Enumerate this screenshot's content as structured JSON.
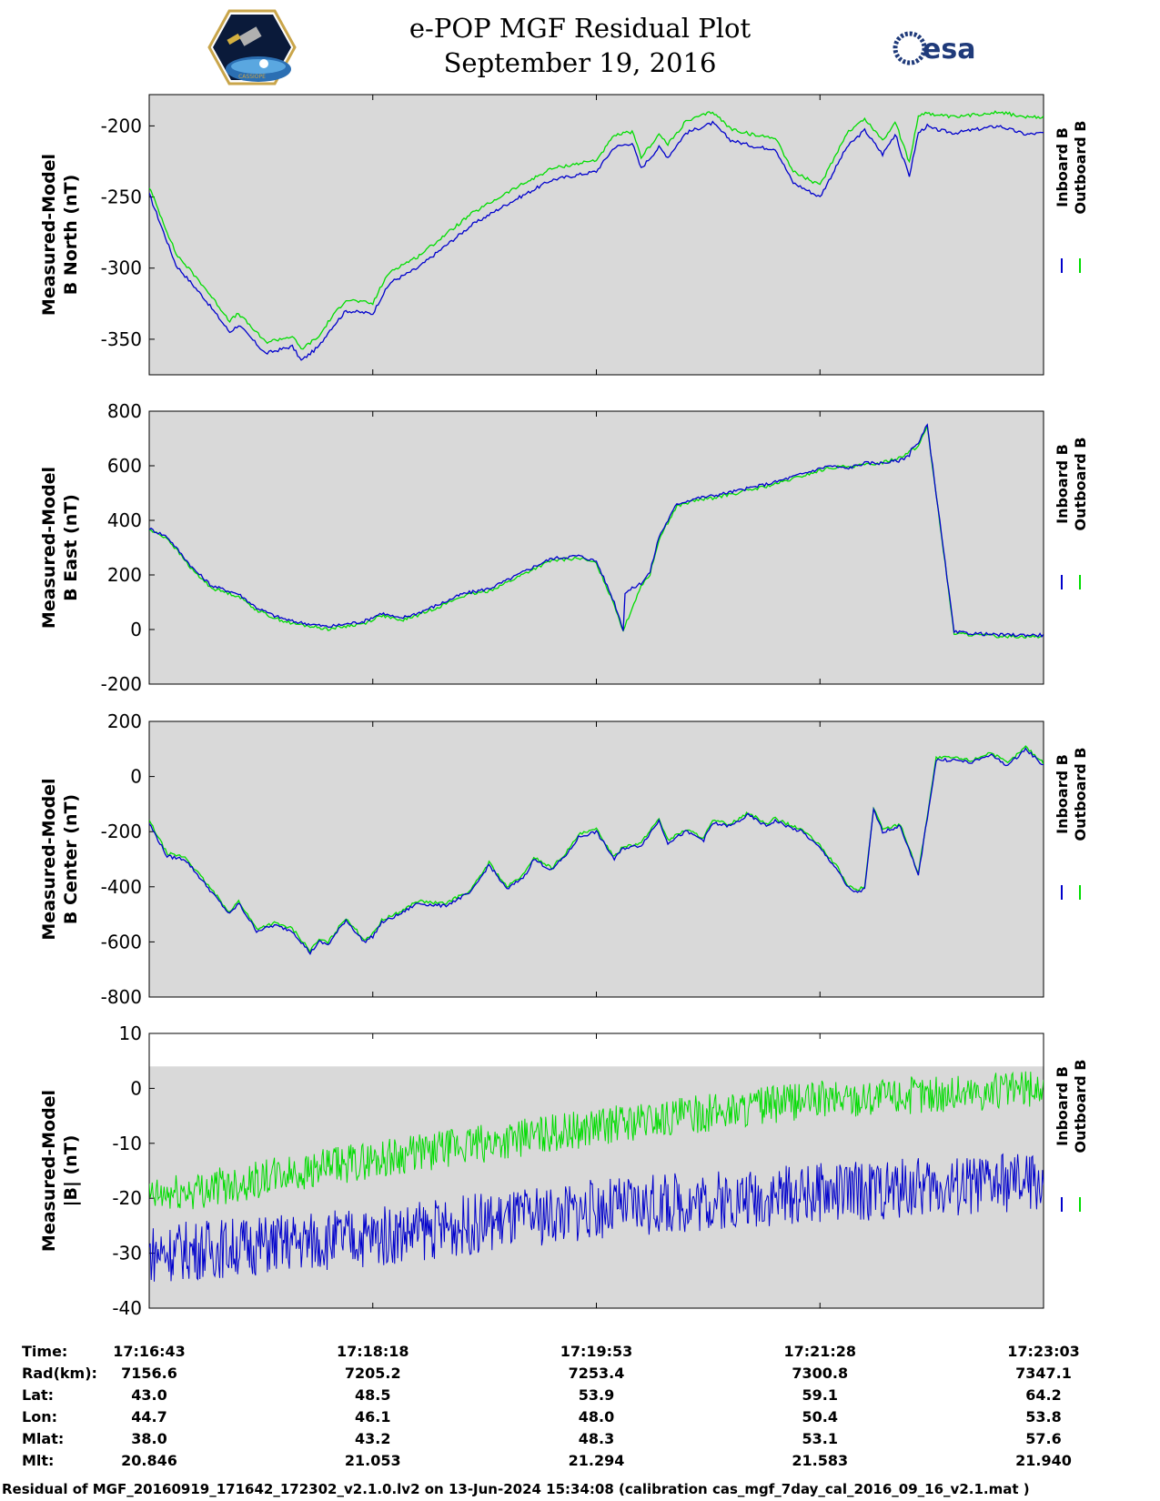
{
  "header": {
    "title_line1": "e-POP MGF Residual Plot",
    "title_line2": "September 19, 2016",
    "left_logo_text": "CASSIOPE",
    "right_logo_text": "esa"
  },
  "colors": {
    "inboard": "#0000cc",
    "outboard": "#00dd00",
    "plot_bg": "#d9d9d9"
  },
  "legend": {
    "inboard": "Inboard B",
    "outboard": "Outboard B"
  },
  "chart_data": [
    {
      "type": "line",
      "ylabel_line1": "Measured-Model",
      "ylabel_line2": "B North (nT)",
      "ylim": [
        -375,
        -178
      ],
      "yticks": [
        -200,
        -250,
        -300,
        -350
      ],
      "grid": false,
      "series": [
        {
          "name": "Inboard B",
          "x": [
            0,
            0.03,
            0.06,
            0.09,
            0.1,
            0.13,
            0.16,
            0.17,
            0.19,
            0.2,
            0.22,
            0.25,
            0.26,
            0.27,
            0.3,
            0.34,
            0.36,
            0.4,
            0.45,
            0.5,
            0.52,
            0.54,
            0.55,
            0.57,
            0.58,
            0.6,
            0.63,
            0.65,
            0.68,
            0.7,
            0.72,
            0.75,
            0.78,
            0.8,
            0.82,
            0.835,
            0.84,
            0.85,
            0.86,
            0.87,
            0.875,
            0.9,
            0.95,
            0.98,
            1.0
          ],
          "y": [
            -248,
            -298,
            -320,
            -345,
            -340,
            -360,
            -355,
            -365,
            -355,
            -345,
            -330,
            -332,
            -320,
            -310,
            -300,
            -280,
            -270,
            -255,
            -238,
            -232,
            -215,
            -212,
            -230,
            -215,
            -222,
            -205,
            -198,
            -210,
            -215,
            -216,
            -240,
            -250,
            -215,
            -203,
            -220,
            -205,
            -218,
            -235,
            -205,
            -200,
            -202,
            -205,
            -200,
            -206,
            -205
          ]
        },
        {
          "name": "Outboard B",
          "x": [
            0,
            0.03,
            0.06,
            0.09,
            0.1,
            0.13,
            0.16,
            0.17,
            0.19,
            0.2,
            0.22,
            0.25,
            0.26,
            0.27,
            0.3,
            0.34,
            0.36,
            0.4,
            0.45,
            0.5,
            0.52,
            0.54,
            0.55,
            0.57,
            0.58,
            0.6,
            0.63,
            0.65,
            0.68,
            0.7,
            0.72,
            0.75,
            0.78,
            0.8,
            0.82,
            0.835,
            0.84,
            0.85,
            0.86,
            0.87,
            0.875,
            0.9,
            0.95,
            0.98,
            1.0
          ],
          "y": [
            -243,
            -290,
            -312,
            -337,
            -332,
            -352,
            -348,
            -357,
            -348,
            -338,
            -322,
            -325,
            -312,
            -302,
            -292,
            -272,
            -262,
            -247,
            -230,
            -224,
            -207,
            -204,
            -222,
            -206,
            -213,
            -197,
            -190,
            -202,
            -207,
            -208,
            -232,
            -242,
            -205,
            -195,
            -210,
            -197,
            -208,
            -226,
            -193,
            -190,
            -192,
            -194,
            -190,
            -194,
            -194
          ]
        }
      ]
    },
    {
      "type": "line",
      "ylabel_line1": "Measured-Model",
      "ylabel_line2": "B East (nT)",
      "ylim": [
        -200,
        800
      ],
      "yticks": [
        800,
        600,
        400,
        200,
        0,
        -200
      ],
      "grid": false,
      "series": [
        {
          "name": "Inboard B",
          "x": [
            0,
            0.02,
            0.05,
            0.07,
            0.1,
            0.12,
            0.14,
            0.16,
            0.2,
            0.24,
            0.26,
            0.28,
            0.3,
            0.33,
            0.35,
            0.38,
            0.4,
            0.43,
            0.45,
            0.48,
            0.5,
            0.52,
            0.53,
            0.5,
            0.51,
            0.525,
            0.54,
            0.55,
            0.56,
            0.57,
            0.59,
            0.61,
            0.63,
            0.66,
            0.7,
            0.72,
            0.74,
            0.76,
            0.78,
            0.8,
            0.82,
            0.84,
            0.85,
            0.8,
            0.81,
            0.82,
            0.86,
            0.87,
            0.9,
            0.95,
            1.0
          ],
          "y": [
            370,
            340,
            220,
            160,
            130,
            80,
            50,
            30,
            10,
            30,
            60,
            40,
            60,
            100,
            130,
            150,
            180,
            230,
            260,
            270,
            250,
            100,
            0,
            270,
            270,
            120,
            150,
            170,
            210,
            340,
            460,
            480,
            490,
            510,
            540,
            560,
            580,
            600,
            590,
            610,
            610,
            620,
            640,
            560,
            590,
            600,
            680,
            750,
            -10,
            -20,
            -20
          ]
        },
        {
          "name": "Outboard B",
          "x": [
            0,
            0.02,
            0.05,
            0.07,
            0.1,
            0.12,
            0.14,
            0.16,
            0.2,
            0.24,
            0.26,
            0.28,
            0.3,
            0.33,
            0.35,
            0.38,
            0.4,
            0.43,
            0.45,
            0.48,
            0.5,
            0.52,
            0.53,
            0.55,
            0.56,
            0.57,
            0.59,
            0.61,
            0.63,
            0.66,
            0.7,
            0.72,
            0.74,
            0.76,
            0.8,
            0.82,
            0.84,
            0.86,
            0.87,
            0.9,
            0.95,
            1.0
          ],
          "y": [
            365,
            335,
            212,
            152,
            122,
            72,
            42,
            22,
            2,
            22,
            52,
            32,
            52,
            92,
            122,
            142,
            172,
            222,
            252,
            262,
            242,
            92,
            -5,
            162,
            202,
            332,
            452,
            472,
            482,
            502,
            532,
            552,
            572,
            592,
            602,
            612,
            632,
            672,
            745,
            -15,
            -25,
            -25
          ]
        }
      ]
    },
    {
      "type": "line",
      "ylabel_line1": "Measured-Model",
      "ylabel_line2": "B Center (nT)",
      "ylim": [
        -800,
        200
      ],
      "yticks": [
        200,
        0,
        -200,
        -400,
        -600,
        -800
      ],
      "grid": false,
      "series": [
        {
          "name": "Inboard B",
          "x": [
            0,
            0.02,
            0.04,
            0.06,
            0.09,
            0.1,
            0.12,
            0.14,
            0.16,
            0.18,
            0.19,
            0.2,
            0.22,
            0.24,
            0.25,
            0.26,
            0.28,
            0.3,
            0.33,
            0.36,
            0.38,
            0.4,
            0.42,
            0.43,
            0.45,
            0.47,
            0.48,
            0.5,
            0.52,
            0.53,
            0.55,
            0.57,
            0.58,
            0.6,
            0.62,
            0.63,
            0.65,
            0.67,
            0.69,
            0.7,
            0.72,
            0.73,
            0.75,
            0.76,
            0.77,
            0.78,
            0.79,
            0.8,
            0.81,
            0.82,
            0.84,
            0.86,
            0.88,
            0.9,
            0.92,
            0.94,
            0.96,
            0.98,
            1.0
          ],
          "y": [
            -170,
            -290,
            -300,
            -380,
            -500,
            -460,
            -560,
            -540,
            -560,
            -640,
            -600,
            -610,
            -520,
            -600,
            -580,
            -530,
            -500,
            -460,
            -470,
            -420,
            -320,
            -410,
            -360,
            -300,
            -340,
            -270,
            -220,
            -200,
            -300,
            -260,
            -250,
            -160,
            -240,
            -200,
            -230,
            -170,
            -180,
            -140,
            -180,
            -160,
            -190,
            -200,
            -260,
            -300,
            -340,
            -400,
            -420,
            -410,
            -120,
            -200,
            -180,
            -360,
            60,
            60,
            50,
            80,
            40,
            100,
            40
          ]
        },
        {
          "name": "Outboard B",
          "x": [
            0,
            0.02,
            0.04,
            0.06,
            0.09,
            0.1,
            0.12,
            0.14,
            0.16,
            0.18,
            0.19,
            0.2,
            0.22,
            0.24,
            0.25,
            0.26,
            0.28,
            0.3,
            0.33,
            0.36,
            0.38,
            0.4,
            0.42,
            0.43,
            0.45,
            0.47,
            0.48,
            0.5,
            0.52,
            0.53,
            0.55,
            0.57,
            0.58,
            0.6,
            0.62,
            0.63,
            0.65,
            0.67,
            0.69,
            0.7,
            0.72,
            0.73,
            0.75,
            0.76,
            0.77,
            0.78,
            0.79,
            0.8,
            0.81,
            0.82,
            0.84,
            0.86,
            0.88,
            0.9,
            0.92,
            0.94,
            0.96,
            0.98,
            1.0
          ],
          "y": [
            -160,
            -280,
            -292,
            -372,
            -492,
            -452,
            -552,
            -532,
            -552,
            -632,
            -592,
            -602,
            -512,
            -592,
            -572,
            -522,
            -492,
            -452,
            -462,
            -412,
            -312,
            -402,
            -352,
            -292,
            -332,
            -262,
            -212,
            -192,
            -292,
            -252,
            -242,
            -152,
            -232,
            -192,
            -222,
            -162,
            -172,
            -132,
            -172,
            -152,
            -182,
            -192,
            -252,
            -292,
            -332,
            -392,
            -412,
            -402,
            -112,
            -192,
            -172,
            -352,
            68,
            68,
            58,
            88,
            48,
            108,
            48
          ]
        }
      ]
    },
    {
      "type": "line",
      "ylabel_line1": "Measured-Model",
      "ylabel_line2": "|B| (nT)",
      "ylim": [
        -40,
        10
      ],
      "yticks": [
        10,
        0,
        -10,
        -20,
        -30,
        -40
      ],
      "grid": false,
      "series": [
        {
          "name": "Inboard B",
          "x": [
            0,
            0.25,
            0.5,
            0.75,
            1.0
          ],
          "y": [
            -30,
            -27,
            -22,
            -19,
            -17
          ]
        },
        {
          "name": "Outboard B",
          "x": [
            0,
            0.25,
            0.5,
            0.75,
            1.0
          ],
          "y": [
            -20,
            -13,
            -7,
            -2,
            0
          ]
        }
      ]
    }
  ],
  "xaxis": {
    "labels": [
      {
        "time": "17:16:43",
        "rad": "7156.6",
        "lat": "43.0",
        "lon": "44.7",
        "mlat": "38.0",
        "mlt": "20.846"
      },
      {
        "time": "17:18:18",
        "rad": "7205.2",
        "lat": "48.5",
        "lon": "46.1",
        "mlat": "43.2",
        "mlt": "21.053"
      },
      {
        "time": "17:19:53",
        "rad": "7253.4",
        "lat": "53.9",
        "lon": "48.0",
        "mlat": "48.3",
        "mlt": "21.294"
      },
      {
        "time": "17:21:28",
        "rad": "7300.8",
        "lat": "59.1",
        "lon": "50.4",
        "mlat": "53.1",
        "mlt": "21.583"
      },
      {
        "time": "17:23:03",
        "rad": "7347.1",
        "lat": "64.2",
        "lon": "53.8",
        "mlat": "57.6",
        "mlt": "21.940"
      }
    ],
    "row_labels": {
      "time": "Time:",
      "rad": "Rad(km):",
      "lat": "Lat:",
      "lon": "Lon:",
      "mlat": "Mlat:",
      "mlt": "Mlt:"
    }
  },
  "footer": "Residual of MGF_20160919_171642_172302_v2.1.0.lv2 on 13-Jun-2024 15:34:08 (calibration cas_mgf_7day_cal_2016_09_16_v2.1.mat )"
}
